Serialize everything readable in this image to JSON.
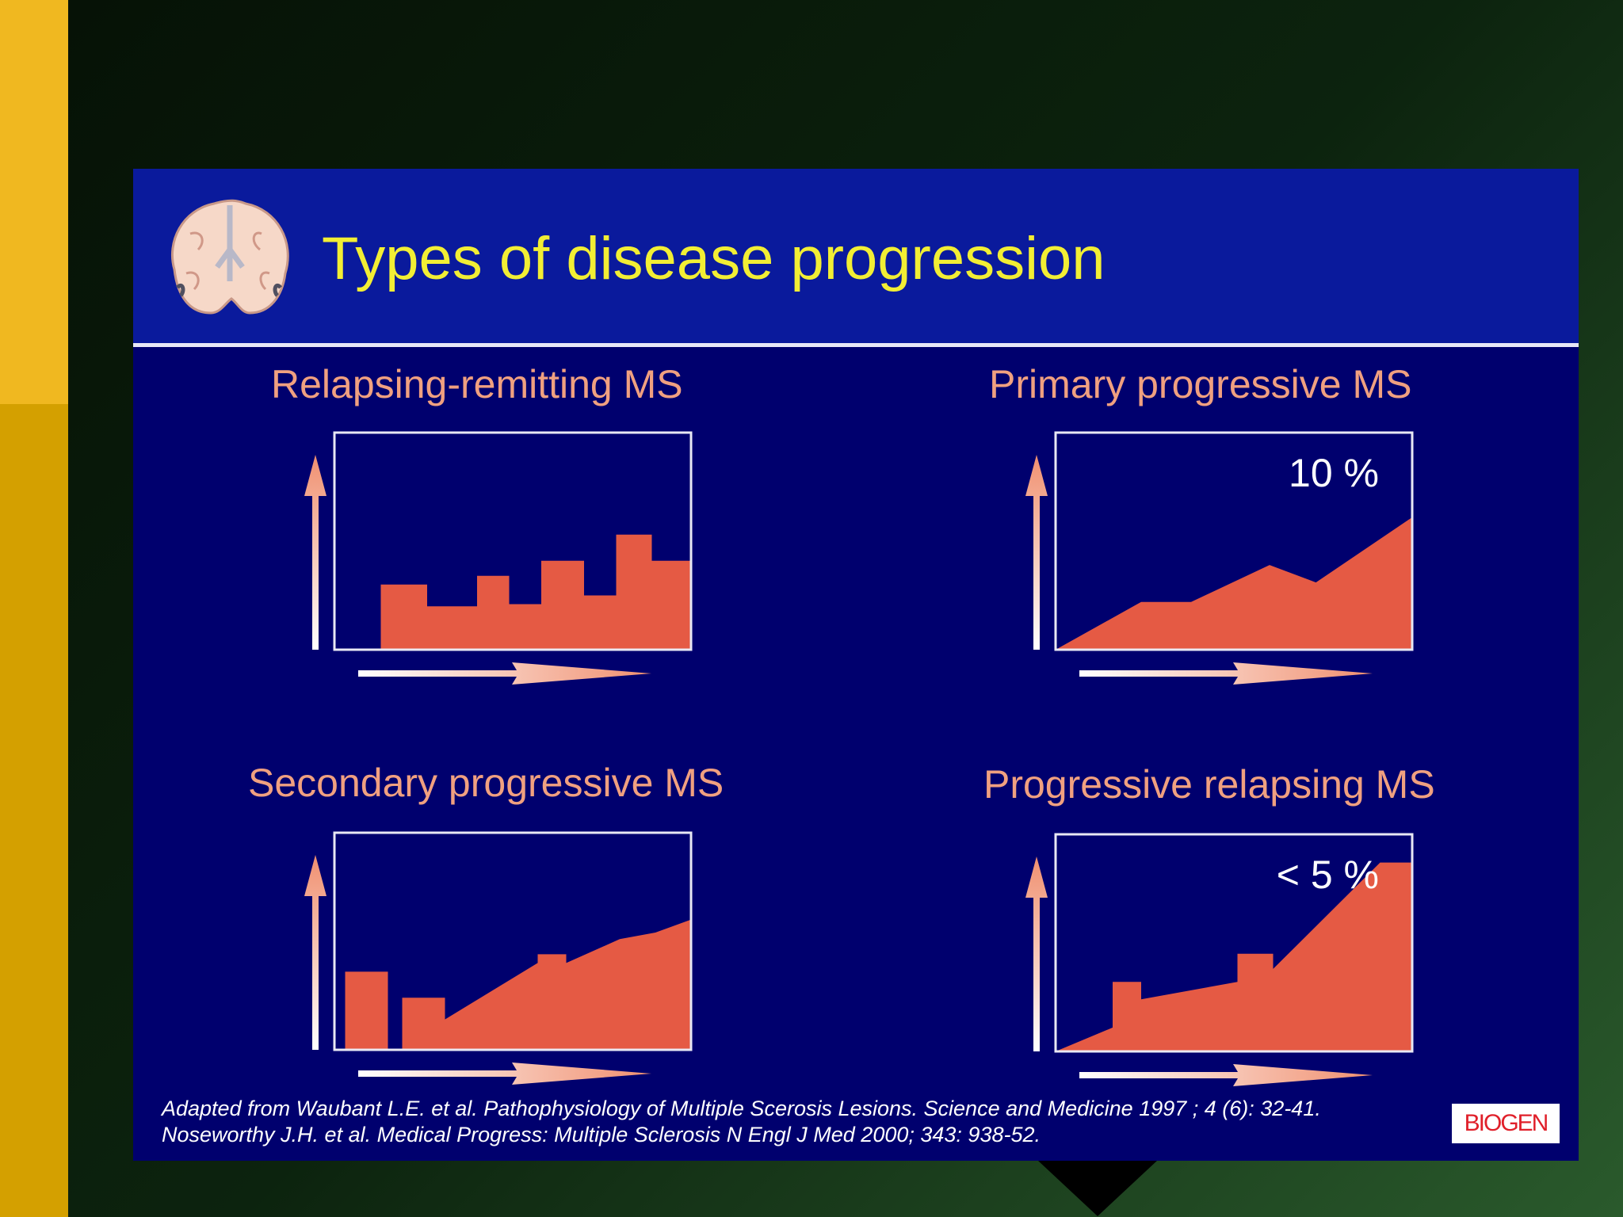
{
  "slide": {
    "title": "Types of disease progression",
    "references": [
      "Adapted from Waubant L.E. et al. Pathophysiology of Multiple Scerosis Lesions. Science and Medicine 1997 ; 4 (6): 32-41.",
      "Noseworthy J.H. et al. Medical Progress: Multiple Sclerosis N Engl J Med 2000; 343: 938-52."
    ],
    "logo_text": "BIOGEN"
  },
  "colors": {
    "title": "#f2ee34",
    "panel_title": "#f0a080",
    "fill": "#e55a44",
    "slide_bg": "#00006e",
    "header_bg": "#0a1a9c"
  },
  "panels": [
    {
      "title": "Relapsing-remitting MS",
      "percentage": "",
      "profile": [
        [
          0,
          0
        ],
        [
          0.13,
          0
        ],
        [
          0.13,
          0.3
        ],
        [
          0.26,
          0.3
        ],
        [
          0.26,
          0.2
        ],
        [
          0.4,
          0.2
        ],
        [
          0.4,
          0.34
        ],
        [
          0.49,
          0.34
        ],
        [
          0.49,
          0.21
        ],
        [
          0.58,
          0.21
        ],
        [
          0.58,
          0.41
        ],
        [
          0.7,
          0.41
        ],
        [
          0.7,
          0.25
        ],
        [
          0.79,
          0.25
        ],
        [
          0.79,
          0.53
        ],
        [
          0.89,
          0.53
        ],
        [
          0.89,
          0.41
        ],
        [
          1,
          0.41
        ],
        [
          1,
          0
        ]
      ]
    },
    {
      "title": "Primary progressive MS",
      "percentage": "10 %",
      "profile": [
        [
          0,
          0
        ],
        [
          0.24,
          0.22
        ],
        [
          0.38,
          0.22
        ],
        [
          0.6,
          0.39
        ],
        [
          0.73,
          0.31
        ],
        [
          1,
          0.61
        ],
        [
          1,
          0
        ]
      ]
    },
    {
      "title": "Secondary progressive MS",
      "percentage": "",
      "profile": [
        [
          0.03,
          0
        ],
        [
          0.03,
          0.36
        ],
        [
          0.15,
          0.36
        ],
        [
          0.15,
          0
        ],
        [
          0.19,
          0
        ],
        [
          0.19,
          0.24
        ],
        [
          0.31,
          0.24
        ],
        [
          0.31,
          0.14
        ],
        [
          0.57,
          0.4
        ],
        [
          0.57,
          0.44
        ],
        [
          0.65,
          0.44
        ],
        [
          0.65,
          0.4
        ],
        [
          0.8,
          0.51
        ],
        [
          0.9,
          0.54
        ],
        [
          1,
          0.6
        ],
        [
          1,
          0
        ]
      ]
    },
    {
      "title": "Progressive relapsing MS",
      "percentage": "< 5 %",
      "profile": [
        [
          0,
          0
        ],
        [
          0.16,
          0.11
        ],
        [
          0.16,
          0.32
        ],
        [
          0.24,
          0.32
        ],
        [
          0.24,
          0.24
        ],
        [
          0.51,
          0.32
        ],
        [
          0.51,
          0.45
        ],
        [
          0.61,
          0.45
        ],
        [
          0.61,
          0.38
        ],
        [
          0.91,
          0.87
        ],
        [
          1,
          0.87
        ],
        [
          1,
          0
        ]
      ]
    }
  ]
}
